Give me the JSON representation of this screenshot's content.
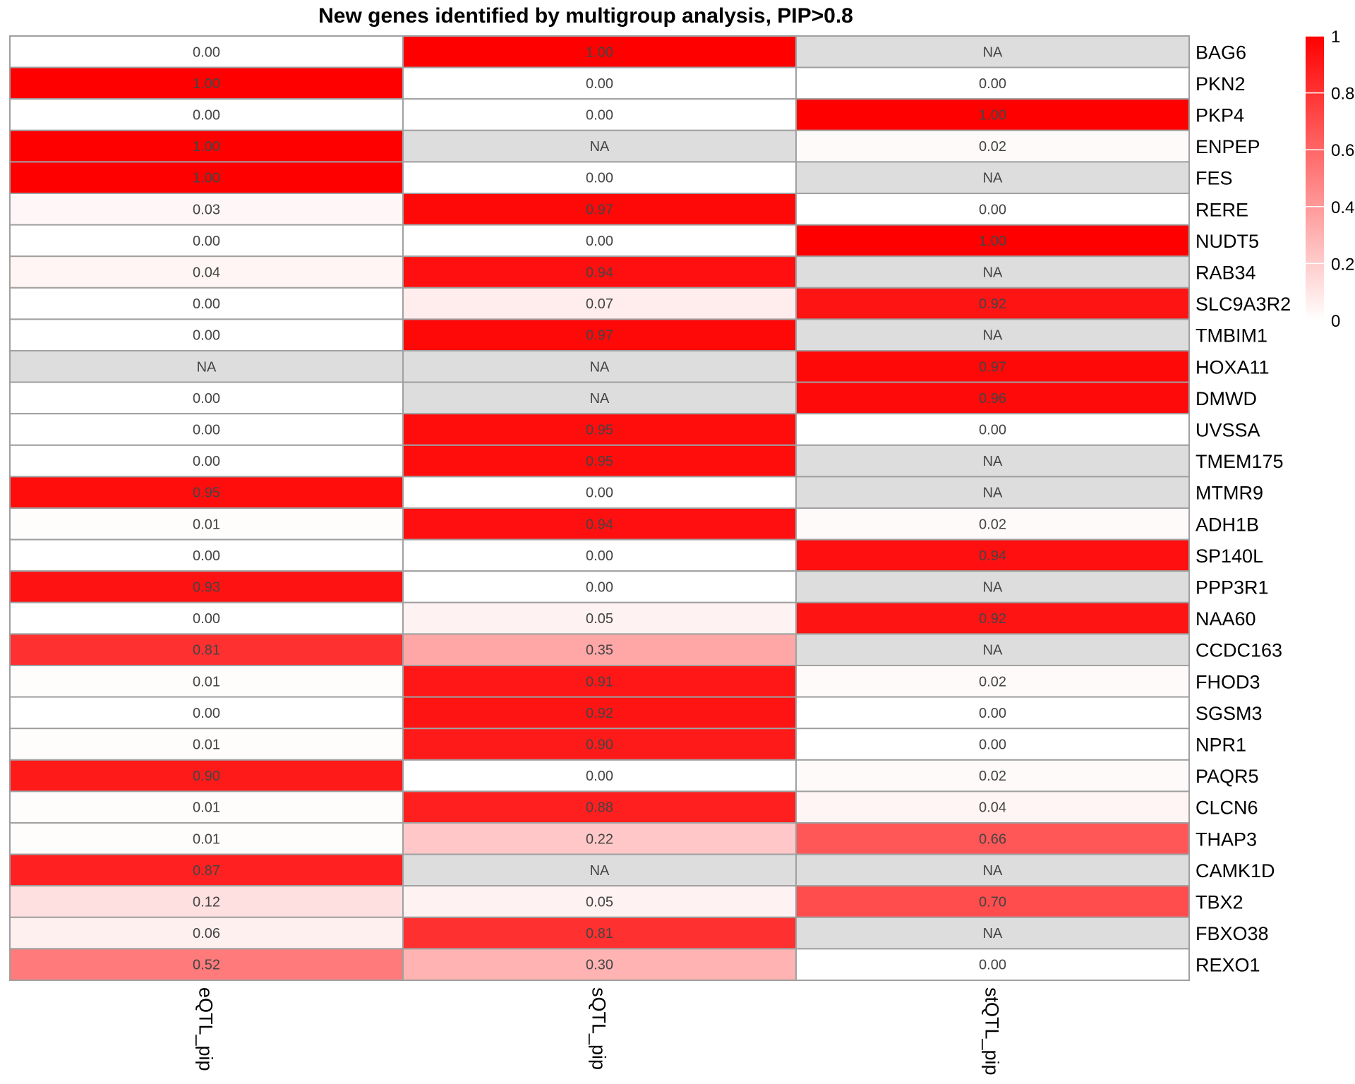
{
  "chart_data": {
    "type": "heatmap",
    "title": "New genes identified by multigroup analysis, PIP>0.8",
    "columns": [
      "eQTL_pip",
      "sQTL_pip",
      "stQTL_pip"
    ],
    "rows": [
      "BAG6",
      "PKN2",
      "PKP4",
      "ENPEP",
      "FES",
      "RERE",
      "NUDT5",
      "RAB34",
      "SLC9A3R2",
      "TMBIM1",
      "HOXA11",
      "DMWD",
      "UVSSA",
      "TMEM175",
      "MTMR9",
      "ADH1B",
      "SP140L",
      "PPP3R1",
      "NAA60",
      "CCDC163",
      "FHOD3",
      "SGSM3",
      "NPR1",
      "PAQR5",
      "CLCN6",
      "THAP3",
      "CAMK1D",
      "TBX2",
      "FBXO38",
      "REXO1"
    ],
    "values": [
      [
        0.0,
        1.0,
        null
      ],
      [
        1.0,
        0.0,
        0.0
      ],
      [
        0.0,
        0.0,
        1.0
      ],
      [
        1.0,
        null,
        0.02
      ],
      [
        1.0,
        0.0,
        null
      ],
      [
        0.03,
        0.97,
        0.0
      ],
      [
        0.0,
        0.0,
        1.0
      ],
      [
        0.04,
        0.94,
        null
      ],
      [
        0.0,
        0.07,
        0.92
      ],
      [
        0.0,
        0.97,
        null
      ],
      [
        null,
        null,
        0.97
      ],
      [
        0.0,
        null,
        0.96
      ],
      [
        0.0,
        0.95,
        0.0
      ],
      [
        0.0,
        0.95,
        null
      ],
      [
        0.95,
        0.0,
        null
      ],
      [
        0.01,
        0.94,
        0.02
      ],
      [
        0.0,
        0.0,
        0.94
      ],
      [
        0.93,
        0.0,
        null
      ],
      [
        0.0,
        0.05,
        0.92
      ],
      [
        0.81,
        0.35,
        null
      ],
      [
        0.01,
        0.91,
        0.02
      ],
      [
        0.0,
        0.92,
        0.0
      ],
      [
        0.01,
        0.9,
        0.0
      ],
      [
        0.9,
        0.0,
        0.02
      ],
      [
        0.01,
        0.88,
        0.04
      ],
      [
        0.01,
        0.22,
        0.66
      ],
      [
        0.87,
        null,
        null
      ],
      [
        0.12,
        0.05,
        0.7
      ],
      [
        0.06,
        0.81,
        null
      ],
      [
        0.52,
        0.3,
        0.0
      ]
    ],
    "na_label": "NA",
    "color_scale": {
      "low": "#FFFFFF",
      "high": "#FF0000",
      "na": "#DDDDDD",
      "range": [
        0,
        1
      ]
    },
    "legend": {
      "ticks": [
        0,
        0.2,
        0.4,
        0.6,
        0.8,
        1
      ],
      "tick_labels": [
        "0",
        "0.2",
        "0.4",
        "0.6",
        "0.8",
        "1"
      ],
      "position": "right"
    },
    "grid_color": "#A0A0A0"
  }
}
